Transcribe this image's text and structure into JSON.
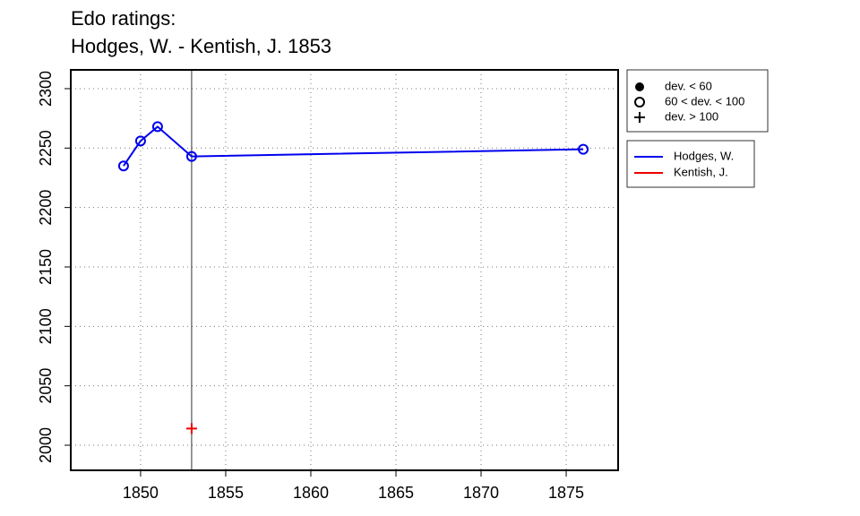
{
  "chart_data": {
    "type": "line",
    "title": "Edo ratings:",
    "subtitle": "Hodges, W. - Kentish, J. 1853",
    "xlim": [
      1845.9,
      1878.05
    ],
    "xticks": [
      1850,
      1855,
      1860,
      1865,
      1870,
      1875
    ],
    "ylim": [
      1978.9,
      2315.8
    ],
    "yticks": [
      2000,
      2050,
      2100,
      2150,
      2200,
      2250,
      2300
    ],
    "grid": true,
    "vline": 1853,
    "series": [
      {
        "name": "Hodges, W.",
        "color": "#0000ee",
        "marker": "circle",
        "x": [
          1849,
          1850,
          1851,
          1853,
          1876
        ],
        "values": [
          2235,
          2256,
          2268,
          2243,
          2249
        ]
      },
      {
        "name": "Kentish, J.",
        "color": "#ee0000",
        "marker": "plus",
        "x": [
          1853
        ],
        "values": [
          2014
        ]
      }
    ],
    "marker_legend": [
      {
        "label": "dev. < 60",
        "marker": "dot"
      },
      {
        "label": "60 < dev. < 100",
        "marker": "circle"
      },
      {
        "label": "dev. > 100",
        "marker": "plus"
      }
    ],
    "legend_position": "outside-right"
  }
}
